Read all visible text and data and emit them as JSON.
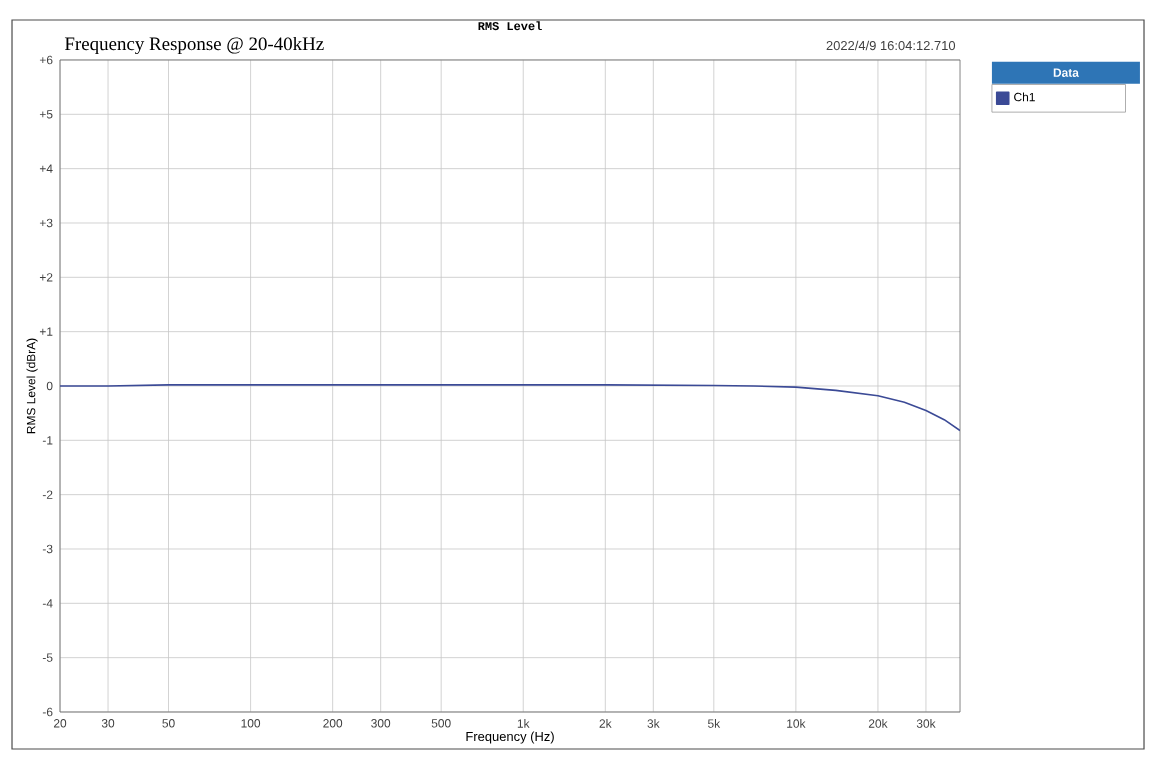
{
  "chart_data": {
    "type": "line",
    "title": "RMS Level",
    "subtitle": "Frequency Response @ 20-40kHz",
    "xlabel": "Frequency (Hz)",
    "ylabel": "RMS Level (dBrA)",
    "legend_title": "Data",
    "annotations": [
      "2022/4/9 16:04:12.710"
    ],
    "series": [
      {
        "name": "Ch1",
        "color": "#3b4a96",
        "x": [
          20,
          30,
          50,
          100,
          200,
          500,
          1000,
          2000,
          5000,
          7000,
          10000,
          14000,
          20000,
          25000,
          30000,
          35000,
          40000
        ],
        "values": [
          0,
          0,
          0.02,
          0.02,
          0.02,
          0.02,
          0.02,
          0.02,
          0.01,
          0,
          -0.02,
          -0.08,
          -0.18,
          -0.3,
          -0.45,
          -0.62,
          -0.82
        ]
      }
    ],
    "log": "x",
    "xlim": [
      20,
      40000
    ],
    "ylim": [
      -6,
      6
    ],
    "xticks": [
      20,
      30,
      50,
      100,
      200,
      300,
      500,
      {
        "value": 1000,
        "label": "1k"
      },
      {
        "value": 2000,
        "label": "2k"
      },
      {
        "value": 3000,
        "label": "3k"
      },
      {
        "value": 5000,
        "label": "5k"
      },
      {
        "value": 10000,
        "label": "10k"
      },
      {
        "value": 20000,
        "label": "20k"
      },
      {
        "value": 30000,
        "label": "30k"
      }
    ],
    "yticks": [
      {
        "value": 6,
        "label": "+6"
      },
      {
        "value": 5,
        "label": "+5"
      },
      {
        "value": 4,
        "label": "+4"
      },
      {
        "value": 3,
        "label": "+3"
      },
      {
        "value": 2,
        "label": "+2"
      },
      {
        "value": 1,
        "label": "+1"
      },
      0,
      -1,
      -2,
      -3,
      -4,
      -5,
      -6
    ],
    "grid": true,
    "legend": "top right",
    "marker": "none",
    "line_style": "solid"
  }
}
